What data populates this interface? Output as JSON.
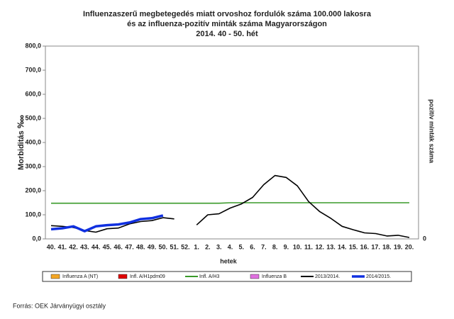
{
  "chart_data": {
    "type": "line",
    "title": [
      "Influenzaszerű megbetegedés miatt orvoshoz fordulók száma 100.000 lakosra",
      "és az influenza-pozitív minták száma Magyarországon",
      "2014. 40 - 50. hét"
    ],
    "xlabel": "hetek",
    "ylabel": "Morbiditás ‱",
    "y2label": "pozitív minták száma",
    "categories": [
      "40.",
      "41.",
      "42.",
      "43.",
      "44.",
      "45.",
      "46.",
      "47.",
      "48.",
      "49.",
      "50.",
      "51.",
      "52.",
      "1.",
      "2.",
      "3.",
      "4.",
      "5.",
      "6.",
      "7.",
      "8.",
      "9.",
      "10.",
      "11.",
      "12.",
      "13.",
      "14.",
      "15.",
      "16.",
      "17.",
      "18.",
      "19.",
      "20."
    ],
    "ylim": [
      0,
      800
    ],
    "yticks": [
      {
        "value": 0,
        "label": "0,0"
      },
      {
        "value": 100,
        "label": "100,0"
      },
      {
        "value": 200,
        "label": "200,0"
      },
      {
        "value": 300,
        "label": "300,0"
      },
      {
        "value": 400,
        "label": "400,0"
      },
      {
        "value": 500,
        "label": "500,0"
      },
      {
        "value": 600,
        "label": "600,0"
      },
      {
        "value": 700,
        "label": "700,0"
      },
      {
        "value": 800,
        "label": "800,0"
      }
    ],
    "y2ticks": [
      0
    ],
    "series": [
      {
        "name": "Influenza A (NT)",
        "color": "#f5a623",
        "kind": "bar"
      },
      {
        "name": "Infl. A/H1pdm09",
        "color": "#e00000",
        "kind": "bar"
      },
      {
        "name": "Infl. A/H3",
        "color": "#3a9a2a",
        "values": [
          148,
          148,
          148,
          148,
          148,
          148,
          148,
          148,
          148,
          148,
          148,
          148,
          148,
          148,
          148,
          148,
          150,
          150,
          150,
          150,
          150,
          150,
          150,
          150,
          150,
          150,
          150,
          150,
          150,
          150,
          150,
          150,
          150
        ]
      },
      {
        "name": "Influenza B",
        "color": "#e070e0",
        "kind": "bar"
      },
      {
        "name": "2013/2014.",
        "color": "#000000",
        "values": [
          55,
          52,
          47,
          35,
          28,
          42,
          45,
          62,
          72,
          76,
          88,
          83,
          null,
          58,
          100,
          104,
          128,
          145,
          172,
          225,
          263,
          255,
          220,
          155,
          113,
          85,
          52,
          38,
          25,
          22,
          12,
          15,
          6
        ]
      },
      {
        "name": "2014/2015.",
        "color": "#1030e0",
        "values": [
          40,
          44,
          52,
          32,
          52,
          57,
          60,
          68,
          82,
          86,
          97,
          null,
          null,
          null,
          null,
          null,
          null,
          null,
          null,
          null,
          null,
          null,
          null,
          null,
          null,
          null,
          null,
          null,
          null,
          null,
          null,
          null,
          null
        ]
      }
    ],
    "source": "Forrás: OEK Járványügyi osztály"
  }
}
